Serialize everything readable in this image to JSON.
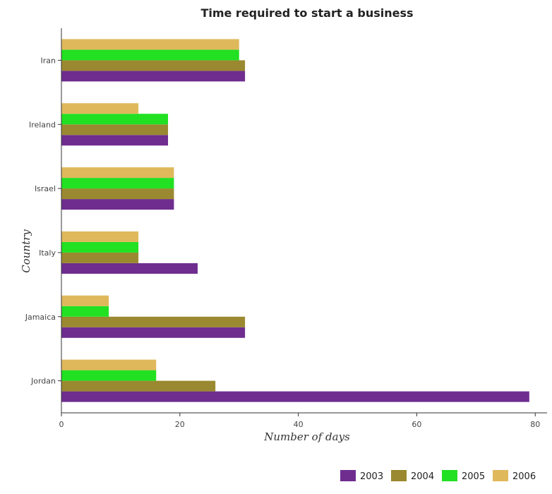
{
  "chart_data": {
    "type": "bar",
    "orientation": "horizontal",
    "title": "Time required to start a business",
    "xlabel": "Number of days",
    "ylabel": "Country",
    "xlim": [
      0,
      82
    ],
    "x_ticks": [
      0,
      20,
      40,
      60,
      80
    ],
    "categories": [
      "Iran",
      "Ireland",
      "Israel",
      "Italy",
      "Jamaica",
      "Jordan"
    ],
    "series": [
      {
        "name": "2003",
        "color": "#6e2d8f",
        "values": [
          31,
          18,
          19,
          23,
          31,
          79
        ]
      },
      {
        "name": "2004",
        "color": "#9a8930",
        "values": [
          31,
          18,
          19,
          13,
          31,
          26
        ]
      },
      {
        "name": "2005",
        "color": "#22e022",
        "values": [
          30,
          18,
          19,
          13,
          8,
          16
        ]
      },
      {
        "name": "2006",
        "color": "#e0b85c",
        "values": [
          30,
          13,
          19,
          13,
          8,
          16
        ]
      }
    ],
    "grid": false,
    "legend_position": "bottom-right"
  }
}
